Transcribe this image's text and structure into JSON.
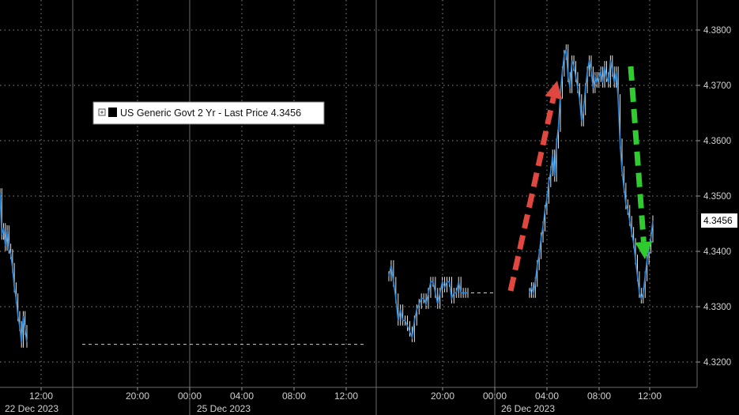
{
  "chart_data": {
    "type": "line",
    "title": "",
    "xlabel": "",
    "ylabel": "",
    "ylim": [
      4.3185,
      4.3835
    ],
    "yticks": [
      "4.3800",
      "4.3700",
      "4.3600",
      "4.3500",
      "4.3400",
      "4.3300",
      "4.3200"
    ],
    "y_tick_values": [
      4.38,
      4.37,
      4.36,
      4.35,
      4.34,
      4.33,
      4.32
    ],
    "x_tick_labels": [
      "12:00",
      "20:00",
      "00:00",
      "04:00",
      "08:00",
      "12:00",
      "20:00",
      "00:00",
      "04:00",
      "08:00",
      "12:00"
    ],
    "date_labels": [
      "22 Dec 2023",
      "25 Dec 2023",
      "26 Dec 2023"
    ],
    "legend": "US Generic Govt 2 Yr - Last Price 4.3456",
    "last_value_label": "4.3456",
    "last_value": 4.3456,
    "grid": true,
    "legend_position": "top-left",
    "colors": {
      "background": "#000000",
      "line": "#2e86d6",
      "candle": "#e8e8e8",
      "grid": "#8a8a8a",
      "up_arrow": "#e0473f",
      "down_arrow": "#2ecc2e",
      "last_label_bg": "#ffffff"
    },
    "series": [
      {
        "segment": "22 Dec 2023",
        "values": [
          4.3505,
          4.343,
          4.3442,
          4.341,
          4.3438,
          4.3405,
          4.3395,
          4.337,
          4.3335,
          4.3315,
          4.3283,
          4.3265,
          4.3235,
          4.3283,
          4.3258,
          4.3235
        ]
      },
      {
        "segment": "25 Dec 2023",
        "values": [
          4.3232,
          4.3232,
          4.3232,
          4.3232,
          4.3232,
          4.3232
        ]
      },
      {
        "segment": "26 Dec 2023 overnight",
        "values": [
          4.3355,
          4.3375,
          4.3345,
          4.3315,
          4.3275,
          4.3295,
          4.3275,
          4.3275,
          4.3265,
          4.3255,
          4.3245,
          4.3275,
          4.3295,
          4.3305,
          4.3315,
          4.3315,
          4.3305,
          4.3325,
          4.3345,
          4.3345,
          4.3325,
          4.3305,
          4.3325,
          4.3345,
          4.3335,
          4.3345,
          4.3345,
          4.3315,
          4.3325,
          4.3325,
          4.3345,
          4.3325,
          4.3325,
          4.3325,
          4.3325
        ]
      },
      {
        "segment": "26 Dec 2023 morning",
        "values": [
          4.3325,
          4.3335,
          4.3325,
          4.3345,
          4.3375,
          4.3395,
          4.3425,
          4.3445,
          4.3475,
          4.3495,
          4.3525,
          4.3545,
          4.3575,
          4.3535,
          4.3595,
          4.3625,
          4.3685,
          4.3725,
          4.3755,
          4.3765,
          4.3715,
          4.3695,
          4.3745,
          4.3735,
          4.3715,
          4.3695,
          4.3675,
          4.3635,
          4.3655,
          4.3695,
          4.3725,
          4.3745,
          4.3725,
          4.3695,
          4.3715,
          4.3705,
          4.3715,
          4.3725,
          4.3705,
          4.3735,
          4.3715,
          4.3705,
          4.3745,
          4.3725,
          4.3705,
          4.3725,
          4.3675,
          4.3595,
          4.3545,
          4.3515,
          4.3485,
          4.3475,
          4.3455,
          4.3435,
          4.3415,
          4.3385,
          4.3355,
          4.3325,
          4.3315,
          4.3325,
          4.3355,
          4.3385,
          4.3405,
          4.3425,
          4.3456
        ]
      }
    ],
    "annotations": [
      {
        "type": "arrow",
        "direction": "up",
        "color": "red",
        "from": [
          "26 Dec 2023 01:00",
          4.3325
        ],
        "to": [
          "26 Dec 2023 05:50",
          4.3725
        ]
      },
      {
        "type": "arrow",
        "direction": "down",
        "color": "green",
        "from": [
          "26 Dec 2023 10:20",
          4.3765
        ],
        "to": [
          "26 Dec 2023 11:50",
          4.3392
        ]
      }
    ]
  }
}
